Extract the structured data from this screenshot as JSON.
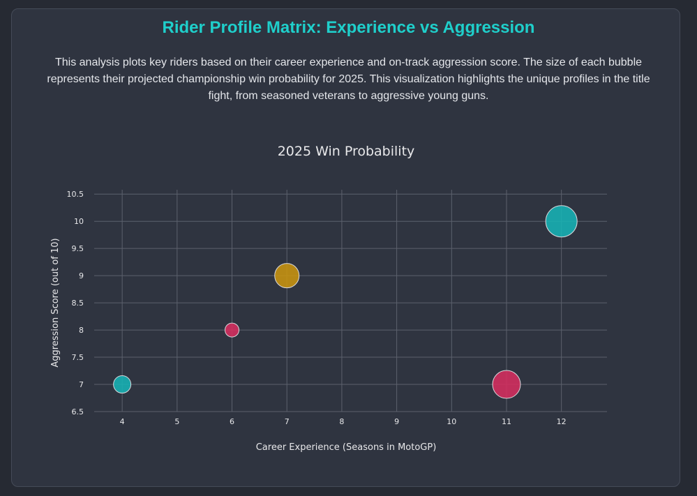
{
  "header": {
    "title": "Rider Profile Matrix: Experience vs Aggression",
    "description": "This analysis plots key riders based on their career experience and on-track aggression score. The size of each bubble represents their projected championship win probability for 2025. This visualization highlights the unique profiles in the title fight, from seasoned veterans to aggressive young guns."
  },
  "chart_data": {
    "type": "scatter",
    "title": "2025 Win Probability",
    "xlabel": "Career Experience (Seasons in MotoGP)",
    "ylabel": "Aggression Score (out of 10)",
    "xlim": [
      3.49,
      12.83
    ],
    "ylim": [
      6.5,
      10.58
    ],
    "xticks": [
      4,
      5,
      6,
      7,
      8,
      9,
      10,
      11,
      12
    ],
    "yticks": [
      6.5,
      7,
      7.5,
      8,
      8.5,
      9,
      9.5,
      10,
      10.5
    ],
    "grid": true,
    "points": [
      {
        "x": 4,
        "y": 7,
        "size": 12.5,
        "color": "#17b3b5"
      },
      {
        "x": 6,
        "y": 8,
        "size": 10,
        "color": "#d62d5e"
      },
      {
        "x": 7,
        "y": 9,
        "size": 17.5,
        "color": "#c9940f"
      },
      {
        "x": 11,
        "y": 7,
        "size": 20,
        "color": "#d62d5e"
      },
      {
        "x": 12,
        "y": 10,
        "size": 22.5,
        "color": "#17b3b5"
      }
    ]
  }
}
